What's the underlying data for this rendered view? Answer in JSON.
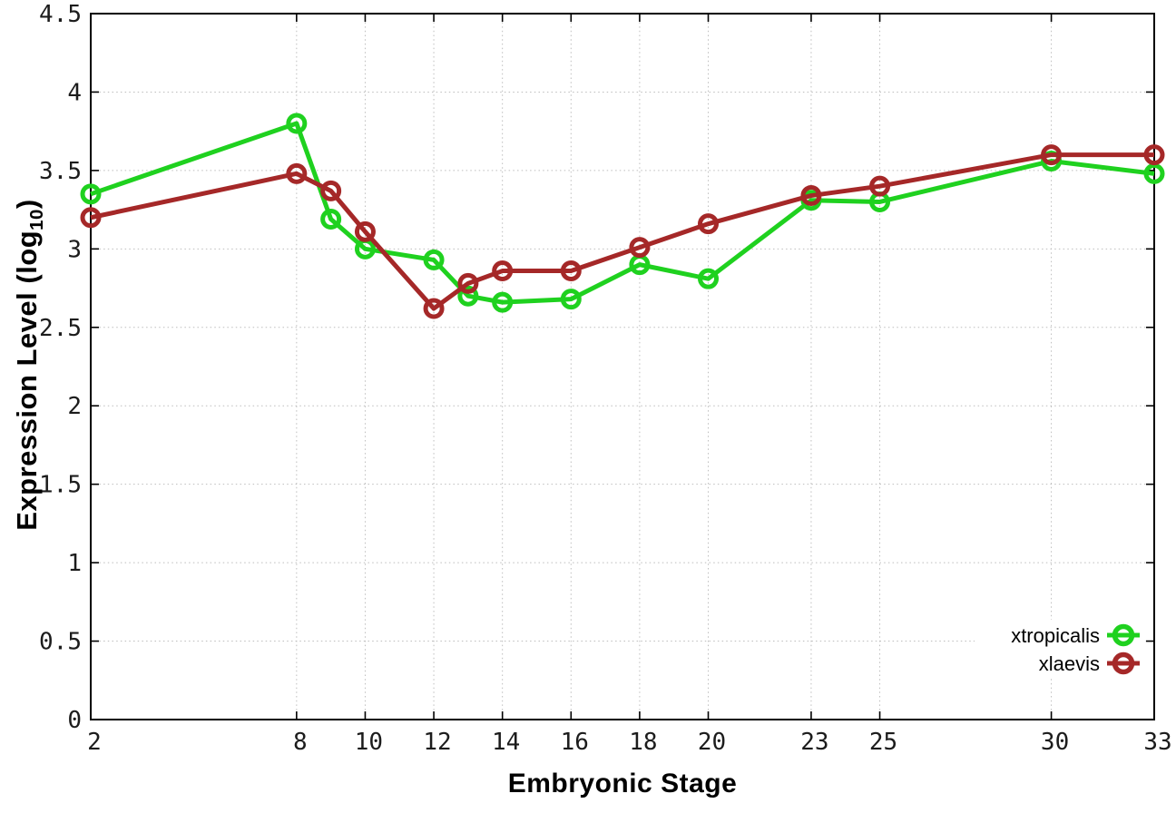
{
  "chart_data": {
    "type": "line",
    "title": "",
    "xlabel": "Embryonic Stage",
    "ylabel": "Expression Level (log10)",
    "ylabel_parts": {
      "pre": "Expression Level (log",
      "sub": "10",
      "post": ")"
    },
    "x": [
      2,
      8,
      9,
      10,
      12,
      13,
      14,
      16,
      18,
      20,
      23,
      25,
      30,
      33
    ],
    "series": [
      {
        "name": "xtropicalis",
        "color": "#1fd11f",
        "marker": "open-circle",
        "values": [
          3.35,
          3.8,
          3.19,
          3.0,
          2.93,
          2.7,
          2.66,
          2.68,
          2.9,
          2.81,
          3.31,
          3.3,
          3.56,
          3.48
        ]
      },
      {
        "name": "xlaevis",
        "color": "#a52828",
        "marker": "open-circle",
        "values": [
          3.2,
          3.48,
          3.37,
          3.11,
          2.62,
          2.78,
          2.86,
          2.86,
          3.01,
          3.16,
          3.34,
          3.4,
          3.6,
          3.6
        ]
      }
    ],
    "xlim": [
      2,
      33
    ],
    "ylim": [
      0,
      4.5
    ],
    "xticks": {
      "values": [
        2,
        8,
        10,
        12,
        14,
        16,
        18,
        20,
        23,
        25,
        30,
        33
      ],
      "labels": [
        "2",
        "8",
        "10",
        "12",
        "14",
        "16",
        "18",
        "20",
        "23",
        "25",
        "30",
        "33"
      ]
    },
    "yticks": {
      "values": [
        0,
        0.5,
        1,
        1.5,
        2,
        2.5,
        3,
        3.5,
        4,
        4.5
      ],
      "labels": [
        "0",
        "0.5",
        "1",
        "1.5",
        "2",
        "2.5",
        "3",
        "3.5",
        "4",
        "4.5"
      ]
    },
    "grid": true,
    "legend": {
      "position": "bottom-right",
      "entries": [
        "xtropicalis",
        "xlaevis"
      ]
    }
  },
  "colors": {
    "background": "#ffffff",
    "grid": "#bdbdbd",
    "axis": "#000000",
    "tick_label": "#1c1c1c",
    "legend_text": "#000000"
  }
}
